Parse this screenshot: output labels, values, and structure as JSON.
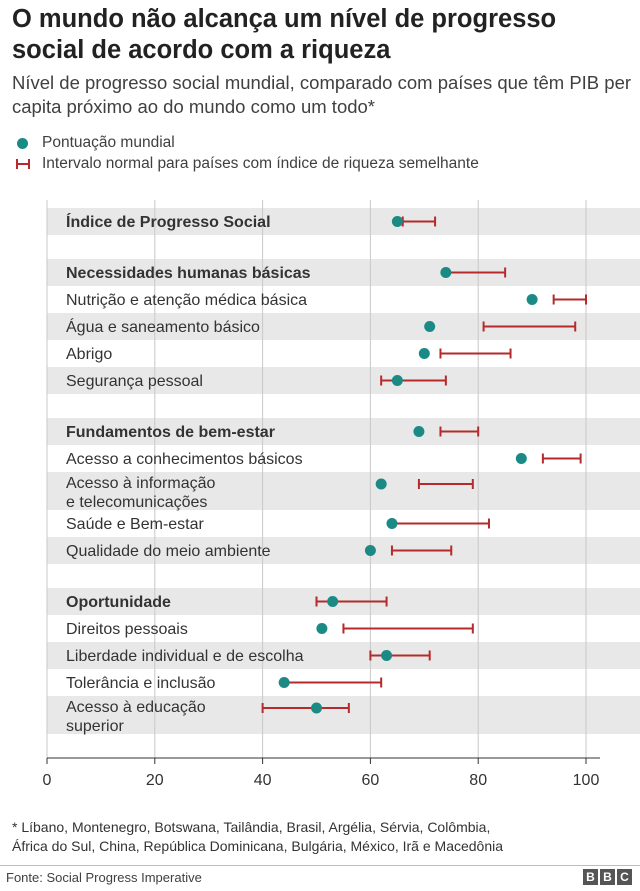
{
  "header": {
    "title": "O mundo não alcança um nível de progresso social de acordo com a riqueza",
    "subtitle": "Nível de progresso social mundial, comparado com países que têm PIB per capita próximo ao do mundo como um todo*"
  },
  "legend": {
    "dot_label": "Pontuação mundial",
    "range_label": "Intervalo normal para países com índice de riqueza semelhante"
  },
  "colors": {
    "dot": "#1b8a85",
    "range": "#b52a2a",
    "band": "#e8e8e8",
    "grid": "#c8c8c8"
  },
  "chart_data": {
    "type": "dot-range",
    "xlim": [
      0,
      100
    ],
    "x_ticks": [
      "0",
      "20",
      "40",
      "60",
      "80",
      "100"
    ],
    "grid": true,
    "rows": [
      {
        "label": "Índice de Progresso Social",
        "bold": true,
        "score": 65,
        "range": [
          66,
          72
        ]
      },
      {
        "label": "",
        "spacer": true
      },
      {
        "label": "Necessidades humanas básicas",
        "bold": true,
        "score": 74,
        "range": [
          74,
          85
        ]
      },
      {
        "label": "Nutrição e atenção médica básica",
        "score": 90,
        "range": [
          94,
          100
        ]
      },
      {
        "label": "Água e saneamento básico",
        "score": 71,
        "range": [
          81,
          98
        ]
      },
      {
        "label": "Abrigo",
        "score": 70,
        "range": [
          73,
          86
        ]
      },
      {
        "label": "Segurança pessoal",
        "score": 65,
        "range": [
          62,
          74
        ]
      },
      {
        "label": "",
        "spacer": true
      },
      {
        "label": "Fundamentos de bem-estar",
        "bold": true,
        "score": 69,
        "range": [
          73,
          80
        ]
      },
      {
        "label": "Acesso a conhecimentos básicos",
        "score": 88,
        "range": [
          92,
          99
        ]
      },
      {
        "label": "Acesso à informação\ne telecomunicações",
        "score": 62,
        "range": [
          69,
          79
        ],
        "tall": true
      },
      {
        "label": "Saúde e Bem-estar",
        "score": 64,
        "range": [
          64,
          82
        ]
      },
      {
        "label": "Qualidade do meio ambiente",
        "score": 60,
        "range": [
          64,
          75
        ]
      },
      {
        "label": "",
        "spacer": true
      },
      {
        "label": "Oportunidade",
        "bold": true,
        "score": 53,
        "range": [
          50,
          63
        ]
      },
      {
        "label": "Direitos pessoais",
        "score": 51,
        "range": [
          55,
          79
        ]
      },
      {
        "label": "Liberdade individual e de escolha",
        "score": 63,
        "range": [
          60,
          71
        ]
      },
      {
        "label": "Tolerância e inclusão",
        "score": 44,
        "range": [
          44,
          62
        ]
      },
      {
        "label": "Acesso à educação\nsuperior",
        "score": 50,
        "range": [
          40,
          56
        ],
        "tall": true
      }
    ]
  },
  "footnote": {
    "line1": "*  Líbano, Montenegro, Botswana, Tailândia, Brasil, Argélia, Sérvia, Colômbia,",
    "line2": "África do Sul, China, República Dominicana, Bulgária, México, Irã e Macedônia"
  },
  "source": "Fonte: Social Progress Imperative",
  "logo": {
    "letters": [
      "B",
      "B",
      "C"
    ]
  }
}
